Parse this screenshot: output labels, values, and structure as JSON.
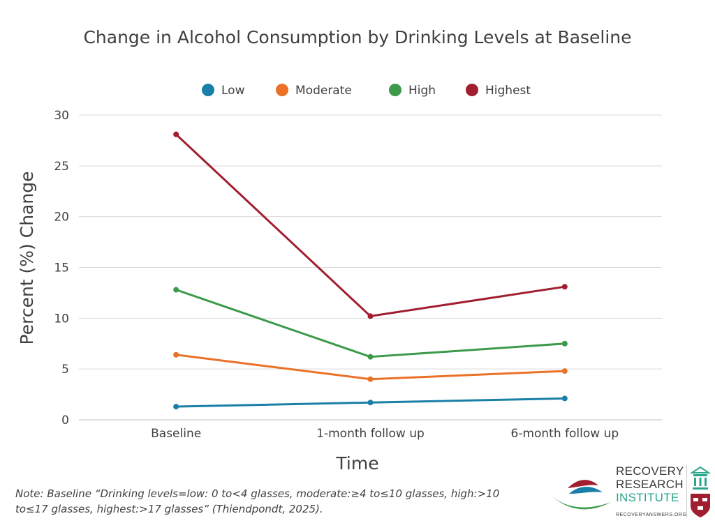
{
  "chart_data": {
    "type": "line",
    "title": "Change in Alcohol Consumption by Drinking Levels at Baseline",
    "xlabel": "Time",
    "ylabel": "Percent (%) Change",
    "categories": [
      "Baseline",
      "1-month follow up",
      "6-month follow up"
    ],
    "ylim": [
      0,
      30
    ],
    "yticks": [
      0,
      5,
      10,
      15,
      20,
      25,
      30
    ],
    "grid": true,
    "legend_position": "top",
    "series": [
      {
        "name": "Low",
        "color": "#1a7fa6",
        "values": [
          1.3,
          1.7,
          2.1
        ]
      },
      {
        "name": "Moderate",
        "color": "#ea7125",
        "values": [
          6.4,
          4.0,
          4.8
        ]
      },
      {
        "name": "High",
        "color": "#3c9a4a",
        "values": [
          12.8,
          6.2,
          7.5
        ]
      },
      {
        "name": "Highest",
        "color": "#a01e2f",
        "values": [
          28.1,
          10.2,
          13.1
        ]
      }
    ]
  },
  "note": "Note:  Baseline “Drinking levels=low: 0 to<4 glasses, moderate:≥4 to≤10 glasses, high:>10 to≤17 glasses, highest:>17 glasses” (Thiendpondt, 2025).",
  "logo": {
    "line1": "RECOVERY",
    "line2": "RESEARCH",
    "line3": "INSTITUTE",
    "url": "RECOVERYANSWERS.ORG"
  }
}
